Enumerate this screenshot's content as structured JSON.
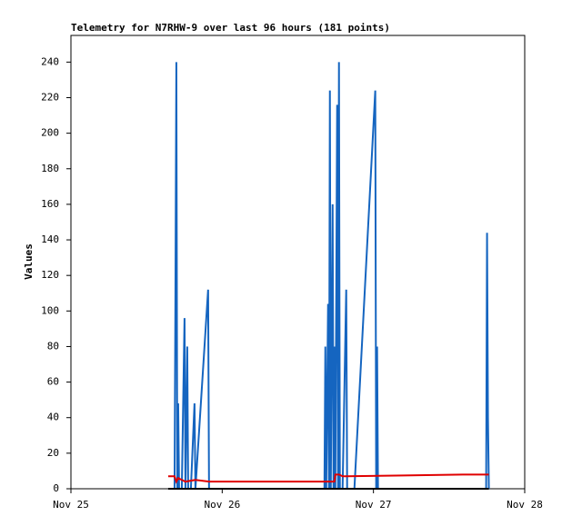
{
  "chart_data": {
    "type": "line",
    "title": "Telemetry for N7RHW-9 over last 96 hours (181 points)",
    "y_label": "Values",
    "xlim": [
      0,
      3
    ],
    "xticks": [
      {
        "value": 0,
        "label": "Nov 25"
      },
      {
        "value": 1,
        "label": "Nov 26"
      },
      {
        "value": 2,
        "label": "Nov 27"
      },
      {
        "value": 3,
        "label": "Nov 28"
      }
    ],
    "ylim": [
      0,
      255
    ],
    "yticks": [
      0,
      20,
      40,
      60,
      80,
      100,
      120,
      140,
      160,
      180,
      200,
      220,
      240
    ],
    "series": [
      {
        "color": "#1565c0",
        "x": [
          0.685,
          0.691,
          0.697,
          0.703,
          0.709,
          0.715,
          0.733,
          0.751,
          0.757,
          0.769,
          0.775,
          0.793,
          0.817,
          0.823,
          0.907,
          0.913,
          1.676,
          1.682,
          1.688,
          1.7,
          1.706,
          1.712,
          1.718,
          1.73,
          1.736,
          1.742,
          1.748,
          1.76,
          1.766,
          1.772,
          1.778,
          1.796,
          1.82,
          1.826,
          1.874,
          2.012,
          2.018,
          2.024,
          2.03,
          2.745,
          2.751,
          2.757,
          2.763
        ],
        "values": [
          0,
          112,
          240,
          0,
          48,
          0,
          0,
          96,
          0,
          80,
          0,
          0,
          48,
          0,
          112,
          0,
          0,
          80,
          0,
          104,
          0,
          224,
          0,
          160,
          0,
          80,
          0,
          216,
          0,
          240,
          0,
          0,
          112,
          0,
          0,
          224,
          0,
          80,
          0,
          0,
          144,
          40,
          0
        ]
      },
      {
        "color": "#e00000",
        "x": [
          0.643,
          0.685,
          0.697,
          0.709,
          0.733,
          0.757,
          0.823,
          0.913,
          1.676,
          1.742,
          1.748,
          1.772,
          1.796,
          2.2,
          2.6,
          2.763
        ],
        "values": [
          7,
          7,
          4,
          6,
          5,
          4,
          5,
          4,
          4,
          4,
          8,
          8,
          7,
          7.5,
          8,
          8
        ]
      },
      {
        "color": "#000000",
        "x": [
          0.643,
          2.763
        ],
        "values": [
          0,
          0
        ]
      }
    ]
  }
}
